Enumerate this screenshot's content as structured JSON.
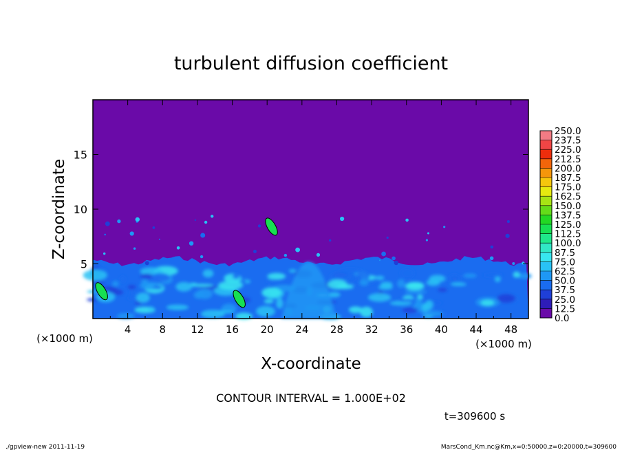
{
  "chart_data": {
    "type": "heatmap",
    "title": "turbulent diffusion coefficient",
    "xlabel": "X-coordinate",
    "ylabel": "Z-coordinate",
    "x_units": "(×1000 m)",
    "y_units": "(×1000 m)",
    "xlim": [
      0,
      50
    ],
    "ylim": [
      0,
      20
    ],
    "x_ticks": [
      4,
      8,
      12,
      16,
      20,
      24,
      28,
      32,
      36,
      40,
      44,
      48
    ],
    "y_ticks": [
      5,
      10,
      15
    ],
    "colorbar": {
      "levels": [
        0.0,
        12.5,
        25.0,
        37.5,
        50.0,
        62.5,
        75.0,
        87.5,
        100.0,
        112.5,
        125.0,
        137.5,
        150.0,
        162.5,
        175.0,
        187.5,
        200.0,
        212.5,
        225.0,
        237.5,
        250.0
      ],
      "level_labels": [
        "0.0",
        "12.5",
        "25.0",
        "37.5",
        "50.0",
        "62.5",
        "75.0",
        "87.5",
        "100.0",
        "112.5",
        "125.0",
        "137.5",
        "150.0",
        "162.5",
        "175.0",
        "187.5",
        "200.0",
        "212.5",
        "225.0",
        "237.5",
        "250.0"
      ],
      "colors": [
        "#6a0aa8",
        "#2e1cb8",
        "#1f3fd8",
        "#1a6cf0",
        "#1e98f5",
        "#29c2f5",
        "#38e6f0",
        "#31e8c6",
        "#1fe88a",
        "#17e052",
        "#22d823",
        "#63dc19",
        "#a7e414",
        "#e6ea10",
        "#f5c70d",
        "#f5960b",
        "#f2650a",
        "#ed2d0c",
        "#f14545",
        "#f27b84"
      ]
    },
    "background_level": 0.0,
    "turbulent_layer_top_km": 5,
    "contour_interval_label": "CONTOUR INTERVAL = 1.000E+02",
    "time_label": "t=309600 s"
  },
  "footer": {
    "left": "./gpview-new  2011-11-19",
    "right": "MarsCond_Km.nc@Km,x=0:50000,z=0:20000,t=309600"
  }
}
